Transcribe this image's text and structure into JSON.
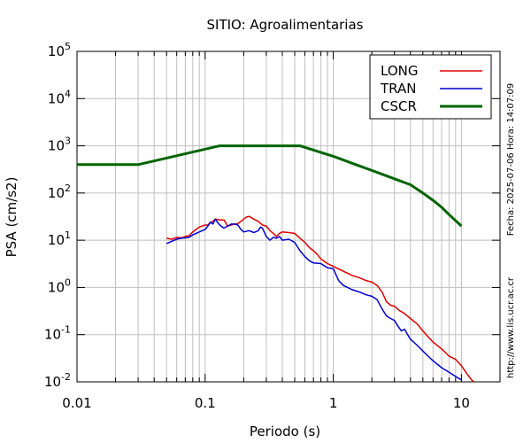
{
  "chart_data": {
    "type": "line",
    "title": "SITIO: Agroalimentarias",
    "xlabel": "Periodo (s)",
    "ylabel": "PSA (cm/s2)",
    "xscale": "log",
    "yscale": "log",
    "xlim": [
      0.01,
      20
    ],
    "ylim": [
      0.01,
      100000
    ],
    "grid": true,
    "legend_position": "top-right",
    "x_ticks": [
      {
        "value": 0.01,
        "label": "0.01"
      },
      {
        "value": 0.1,
        "label": "0.1"
      },
      {
        "value": 1,
        "label": "1"
      },
      {
        "value": 10,
        "label": "10"
      }
    ],
    "y_ticks": [
      {
        "value": 0.01,
        "base": "10",
        "exp": "-2"
      },
      {
        "value": 0.1,
        "base": "10",
        "exp": "-1"
      },
      {
        "value": 1,
        "base": "10",
        "exp": "0"
      },
      {
        "value": 10,
        "base": "10",
        "exp": "1"
      },
      {
        "value": 100,
        "base": "10",
        "exp": "2"
      },
      {
        "value": 1000,
        "base": "10",
        "exp": "3"
      },
      {
        "value": 10000,
        "base": "10",
        "exp": "4"
      },
      {
        "value": 100000,
        "base": "10",
        "exp": "5"
      }
    ],
    "series": [
      {
        "name": "LONG",
        "color": "#e00000",
        "points": [
          [
            0.05,
            11
          ],
          [
            0.055,
            10.5
          ],
          [
            0.06,
            11.5
          ],
          [
            0.065,
            11.2
          ],
          [
            0.07,
            12
          ],
          [
            0.075,
            12.5
          ],
          [
            0.08,
            15
          ],
          [
            0.085,
            17
          ],
          [
            0.09,
            19
          ],
          [
            0.095,
            20
          ],
          [
            0.1,
            21
          ],
          [
            0.105,
            21
          ],
          [
            0.11,
            24
          ],
          [
            0.115,
            25
          ],
          [
            0.12,
            28
          ],
          [
            0.13,
            27
          ],
          [
            0.14,
            27
          ],
          [
            0.15,
            20
          ],
          [
            0.16,
            21
          ],
          [
            0.17,
            22
          ],
          [
            0.18,
            22.5
          ],
          [
            0.19,
            25
          ],
          [
            0.2,
            28
          ],
          [
            0.21,
            31
          ],
          [
            0.22,
            32
          ],
          [
            0.24,
            28
          ],
          [
            0.26,
            25
          ],
          [
            0.28,
            21
          ],
          [
            0.3,
            20
          ],
          [
            0.32,
            16
          ],
          [
            0.34,
            14
          ],
          [
            0.36,
            12
          ],
          [
            0.38,
            14
          ],
          [
            0.4,
            15
          ],
          [
            0.45,
            14.5
          ],
          [
            0.5,
            14
          ],
          [
            0.55,
            11
          ],
          [
            0.6,
            9
          ],
          [
            0.65,
            7
          ],
          [
            0.7,
            6
          ],
          [
            0.75,
            5
          ],
          [
            0.8,
            4
          ],
          [
            0.9,
            3.2
          ],
          [
            1,
            2.8
          ],
          [
            1.2,
            2.2
          ],
          [
            1.4,
            1.8
          ],
          [
            1.6,
            1.6
          ],
          [
            1.8,
            1.4
          ],
          [
            2,
            1.3
          ],
          [
            2.2,
            1.1
          ],
          [
            2.4,
            0.8
          ],
          [
            2.6,
            0.5
          ],
          [
            2.8,
            0.42
          ],
          [
            3,
            0.4
          ],
          [
            3.3,
            0.32
          ],
          [
            3.6,
            0.28
          ],
          [
            4,
            0.22
          ],
          [
            4.5,
            0.17
          ],
          [
            5,
            0.12
          ],
          [
            5.5,
            0.09
          ],
          [
            6,
            0.07
          ],
          [
            7,
            0.05
          ],
          [
            8,
            0.035
          ],
          [
            9,
            0.03
          ],
          [
            10,
            0.022
          ],
          [
            11,
            0.015
          ],
          [
            12,
            0.011
          ],
          [
            12.5,
            0.01
          ]
        ]
      },
      {
        "name": "TRAN",
        "color": "#0000d0",
        "points": [
          [
            0.05,
            8.5
          ],
          [
            0.055,
            9.5
          ],
          [
            0.06,
            10.5
          ],
          [
            0.065,
            11
          ],
          [
            0.07,
            11.2
          ],
          [
            0.075,
            11.5
          ],
          [
            0.08,
            13
          ],
          [
            0.085,
            14
          ],
          [
            0.09,
            15
          ],
          [
            0.095,
            16
          ],
          [
            0.1,
            17
          ],
          [
            0.105,
            20
          ],
          [
            0.11,
            24
          ],
          [
            0.115,
            22
          ],
          [
            0.12,
            28
          ],
          [
            0.125,
            24
          ],
          [
            0.13,
            21
          ],
          [
            0.14,
            18
          ],
          [
            0.15,
            20
          ],
          [
            0.16,
            22
          ],
          [
            0.17,
            22
          ],
          [
            0.18,
            21
          ],
          [
            0.19,
            17
          ],
          [
            0.2,
            15
          ],
          [
            0.22,
            16
          ],
          [
            0.24,
            14.5
          ],
          [
            0.26,
            16
          ],
          [
            0.27,
            19
          ],
          [
            0.28,
            18
          ],
          [
            0.3,
            12
          ],
          [
            0.32,
            10
          ],
          [
            0.34,
            11.5
          ],
          [
            0.36,
            11
          ],
          [
            0.38,
            12
          ],
          [
            0.4,
            10
          ],
          [
            0.45,
            10.5
          ],
          [
            0.5,
            9
          ],
          [
            0.55,
            6
          ],
          [
            0.6,
            4.5
          ],
          [
            0.65,
            3.7
          ],
          [
            0.7,
            3.3
          ],
          [
            0.8,
            3.2
          ],
          [
            0.9,
            2.6
          ],
          [
            1,
            2.5
          ],
          [
            1.1,
            1.4
          ],
          [
            1.2,
            1.1
          ],
          [
            1.4,
            0.9
          ],
          [
            1.6,
            0.8
          ],
          [
            1.8,
            0.7
          ],
          [
            2,
            0.65
          ],
          [
            2.2,
            0.55
          ],
          [
            2.4,
            0.35
          ],
          [
            2.6,
            0.25
          ],
          [
            2.8,
            0.22
          ],
          [
            3,
            0.2
          ],
          [
            3.2,
            0.15
          ],
          [
            3.4,
            0.12
          ],
          [
            3.6,
            0.13
          ],
          [
            3.8,
            0.1
          ],
          [
            4,
            0.08
          ],
          [
            4.5,
            0.06
          ],
          [
            5,
            0.045
          ],
          [
            5.5,
            0.035
          ],
          [
            6,
            0.028
          ],
          [
            7,
            0.02
          ],
          [
            8,
            0.016
          ],
          [
            9,
            0.013
          ],
          [
            10,
            0.011
          ]
        ]
      },
      {
        "name": "CSCR",
        "color": "#006400",
        "points": [
          [
            0.01,
            400
          ],
          [
            0.03,
            400
          ],
          [
            0.13,
            1000
          ],
          [
            0.55,
            1000
          ],
          [
            1,
            600
          ],
          [
            1.5,
            400
          ],
          [
            2,
            300
          ],
          [
            3,
            200
          ],
          [
            4,
            150
          ],
          [
            5,
            100
          ],
          [
            6,
            70
          ],
          [
            7,
            50
          ],
          [
            8,
            35
          ],
          [
            10,
            20
          ]
        ]
      }
    ]
  },
  "side_texts": {
    "date": "Fecha: 2025-07-06 Hora: 14:07:09",
    "url": "http://www.lis.ucr.ac.cr"
  }
}
